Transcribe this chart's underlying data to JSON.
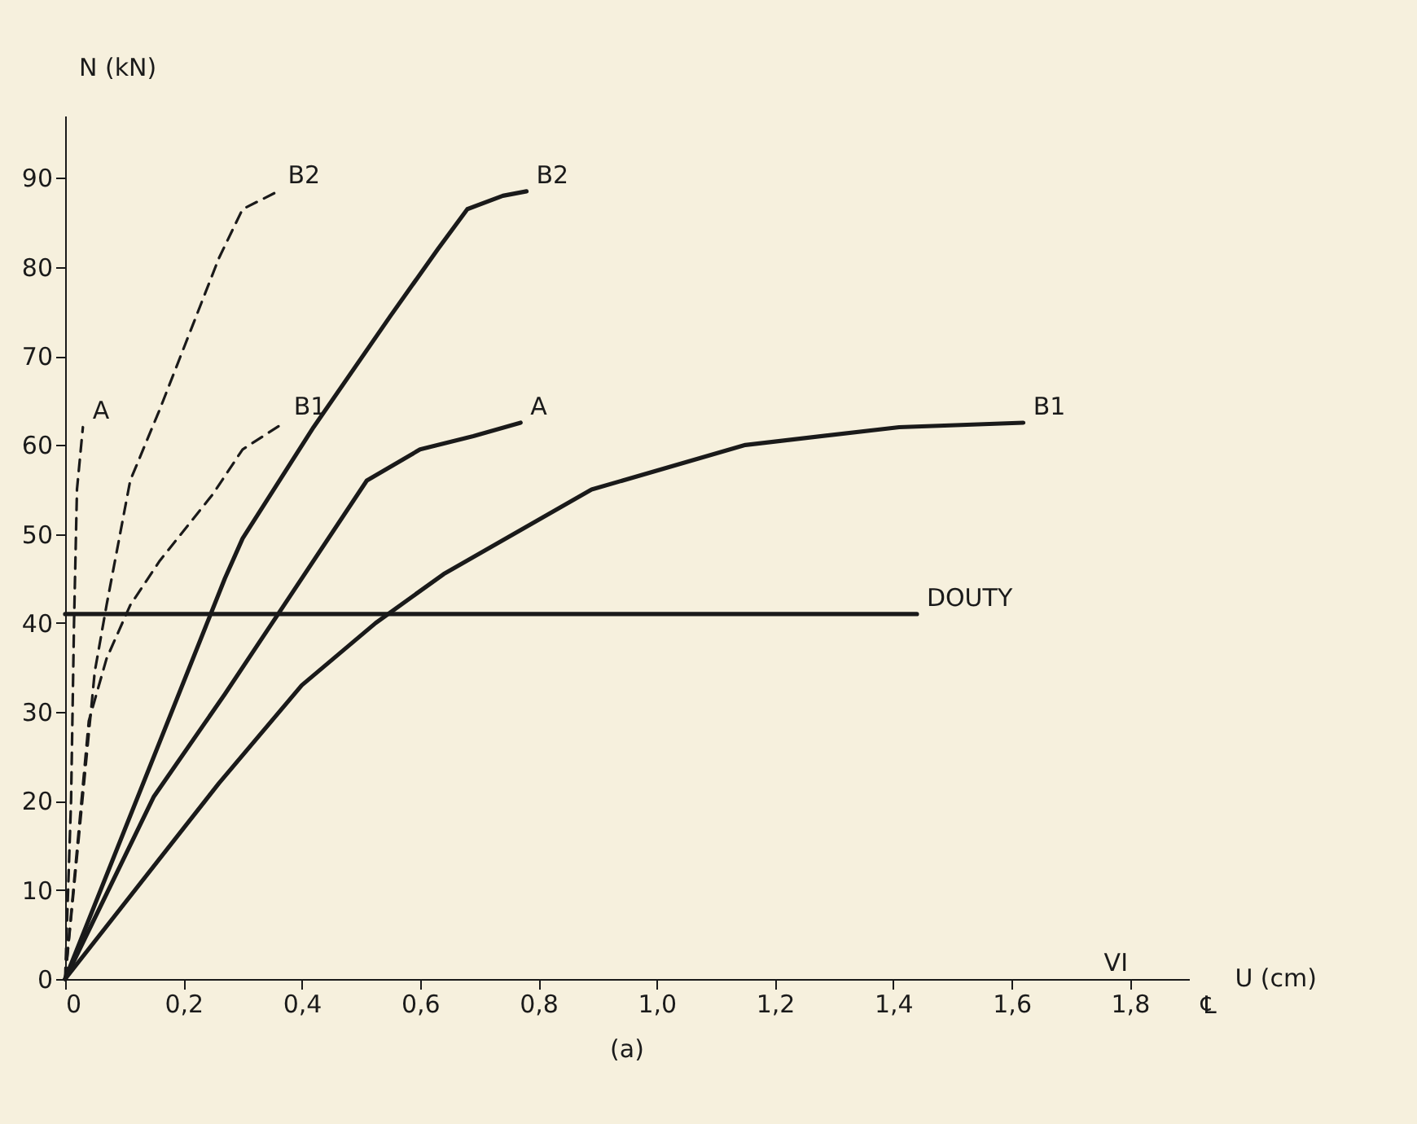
{
  "chart_data": {
    "type": "line",
    "title": "(a)",
    "xlabel": "U (cm)",
    "ylabel": "N (kN)",
    "annotations": [
      "VI",
      "℄"
    ],
    "xlim": [
      0,
      1.9
    ],
    "ylim": [
      0,
      97
    ],
    "xticks": [
      0,
      {
        "value": 0.2,
        "label": "0,2"
      },
      {
        "value": 0.4,
        "label": "0,4"
      },
      {
        "value": 0.6,
        "label": "0,6"
      },
      {
        "value": 0.8,
        "label": "0,8"
      },
      {
        "value": 1.0,
        "label": "1,0"
      },
      {
        "value": 1.2,
        "label": "1,2"
      },
      {
        "value": 1.4,
        "label": "1,4"
      },
      {
        "value": 1.6,
        "label": "1,6"
      },
      {
        "value": 1.8,
        "label": "1,8"
      }
    ],
    "yticks": [
      0,
      10,
      20,
      30,
      40,
      50,
      60,
      70,
      80,
      90
    ],
    "grid": false,
    "series": [
      {
        "name": "A",
        "color": "#1a1a1a",
        "line_style": "dashed",
        "x": [
          0,
          0.01,
          0.015,
          0.02,
          0.03
        ],
        "values": [
          0,
          20,
          40,
          55,
          62
        ]
      },
      {
        "name": "B2",
        "color": "#1a1a1a",
        "line_style": "dashed",
        "x": [
          0,
          0.05,
          0.07,
          0.11,
          0.16,
          0.21,
          0.26,
          0.3,
          0.36
        ],
        "values": [
          0,
          34.5,
          42,
          56,
          64,
          72.5,
          81,
          86.5,
          88.5
        ]
      },
      {
        "name": "B1",
        "color": "#1a1a1a",
        "line_style": "dashed",
        "x": [
          0,
          0.04,
          0.07,
          0.11,
          0.16,
          0.25,
          0.3,
          0.37
        ],
        "values": [
          0,
          29,
          36,
          42,
          47,
          54.5,
          59.5,
          62.5
        ]
      },
      {
        "name": "B2",
        "color": "#1a1a1a",
        "line_style": "solid",
        "x": [
          0,
          0.12,
          0.24,
          0.27,
          0.3,
          0.42,
          0.55,
          0.63,
          0.68,
          0.74,
          0.78
        ],
        "values": [
          0,
          20,
          40,
          45,
          49.5,
          62,
          74.5,
          82,
          86.5,
          88,
          88.5
        ]
      },
      {
        "name": "A",
        "color": "#1a1a1a",
        "line_style": "solid",
        "x": [
          0,
          0.15,
          0.27,
          0.35,
          0.38,
          0.51,
          0.6,
          0.69,
          0.77
        ],
        "values": [
          0,
          20.5,
          32,
          40,
          43,
          56,
          59.5,
          61,
          62.5
        ]
      },
      {
        "name": "B1",
        "color": "#1a1a1a",
        "line_style": "solid",
        "x": [
          0,
          0.26,
          0.4,
          0.525,
          0.64,
          0.89,
          1.15,
          1.41,
          1.62
        ],
        "values": [
          0,
          22,
          33,
          40,
          45.5,
          55,
          60,
          62,
          62.5
        ]
      },
      {
        "name": "DOUTY",
        "color": "#1a1a1a",
        "line_style": "solid",
        "x": [
          0,
          1.44
        ],
        "values": [
          41,
          41
        ]
      }
    ]
  }
}
